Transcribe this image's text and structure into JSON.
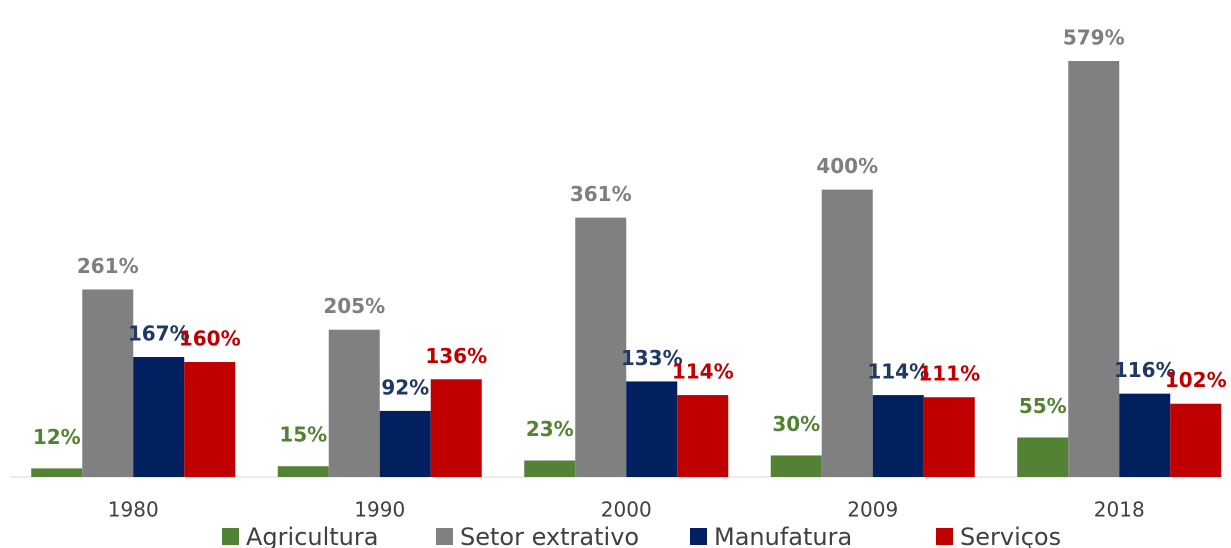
{
  "chart_data": {
    "type": "bar",
    "categories": [
      "1980",
      "1990",
      "2000",
      "2009",
      "2018"
    ],
    "series": [
      {
        "name": "Agricultura",
        "color": "#548235",
        "values": [
          12,
          15,
          23,
          30,
          55
        ],
        "value_labels": [
          "12%",
          "15%",
          "23%",
          "30%",
          "55%"
        ]
      },
      {
        "name": "Setor extrativo",
        "color": "#808080",
        "values": [
          261,
          205,
          361,
          400,
          579
        ],
        "value_labels": [
          "261%",
          "205%",
          "361%",
          "400%",
          "579%"
        ]
      },
      {
        "name": "Manufatura",
        "color": "#002060",
        "values": [
          167,
          92,
          133,
          114,
          116
        ],
        "value_labels": [
          "167%",
          "92%",
          "133%",
          "114%",
          "116%"
        ]
      },
      {
        "name": "Serviços",
        "color": "#c00000",
        "values": [
          160,
          136,
          114,
          111,
          102
        ],
        "value_labels": [
          "160%",
          "136%",
          "114%",
          "111%",
          "102%"
        ]
      }
    ],
    "legend": "bottom"
  }
}
